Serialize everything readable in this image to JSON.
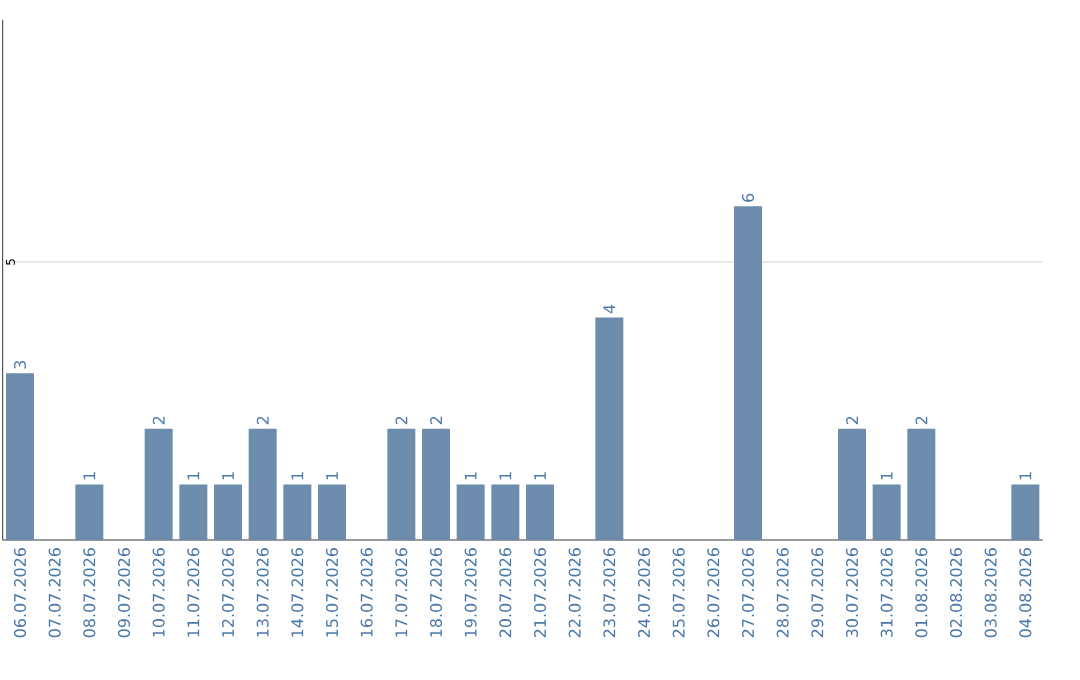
{
  "chart_data": {
    "type": "bar",
    "categories": [
      "06.07.2026",
      "07.07.2026",
      "08.07.2026",
      "09.07.2026",
      "10.07.2026",
      "11.07.2026",
      "12.07.2026",
      "13.07.2026",
      "14.07.2026",
      "15.07.2026",
      "16.07.2026",
      "17.07.2026",
      "18.07.2026",
      "19.07.2026",
      "20.07.2026",
      "21.07.2026",
      "22.07.2026",
      "23.07.2026",
      "24.07.2026",
      "25.07.2026",
      "26.07.2026",
      "27.07.2026",
      "28.07.2026",
      "29.07.2026",
      "30.07.2026",
      "31.07.2026",
      "01.08.2026",
      "02.08.2026",
      "03.08.2026",
      "04.08.2026"
    ],
    "values": [
      3,
      0,
      1,
      0,
      2,
      1,
      1,
      2,
      1,
      1,
      0,
      2,
      2,
      1,
      1,
      1,
      0,
      4,
      0,
      0,
      0,
      6,
      0,
      0,
      2,
      1,
      2,
      0,
      0,
      1
    ],
    "value_labels": [
      "3",
      null,
      "1",
      null,
      "2",
      "1",
      "1",
      "2",
      "1",
      "1",
      null,
      "2",
      "2",
      "1",
      "1",
      "1",
      null,
      "4",
      null,
      null,
      null,
      "6",
      null,
      null,
      "2",
      "1",
      "2",
      null,
      null,
      "1"
    ],
    "color": "#6b8cad",
    "ylim": [
      0,
      9.35
    ],
    "ref_lines": [
      {
        "axis": "y",
        "value": 5,
        "label": "5",
        "color": "#c8c8c8"
      }
    ]
  }
}
